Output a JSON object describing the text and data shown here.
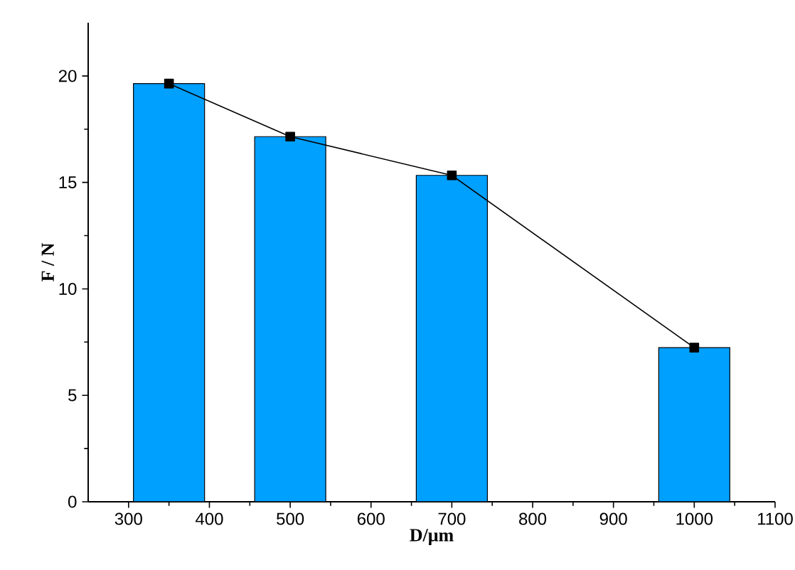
{
  "chart_data": {
    "type": "bar",
    "xlabel": "D/μm",
    "ylabel": "F / N",
    "x": [
      350,
      500,
      700,
      1000
    ],
    "series": [
      {
        "color": "#00a0ff",
        "values": [
          19.64,
          17.15,
          15.33,
          7.24
        ]
      },
      {
        "type": "line",
        "color": "#000000",
        "marker": "square",
        "line_style": "solid",
        "values": [
          19.64,
          17.15,
          15.33,
          7.24
        ]
      }
    ],
    "xlim": [
      250,
      1100
    ],
    "xticks": [
      300,
      400,
      500,
      600,
      700,
      800,
      900,
      1000,
      1100
    ],
    "ylim": [
      0,
      22.5
    ],
    "yticks": [
      0,
      5,
      10,
      15,
      20
    ]
  }
}
